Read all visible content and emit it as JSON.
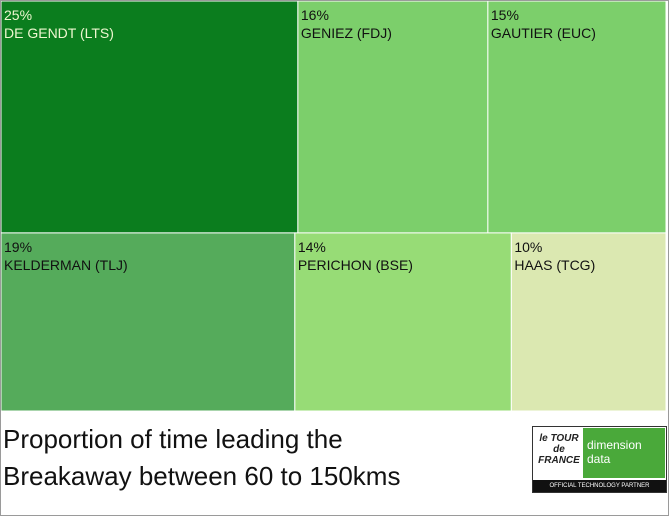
{
  "chart_data": {
    "type": "treemap",
    "title": "Proportion of time leading the Breakaway between 60 to 150kms",
    "categories": [
      "DE GENDT (LTS)",
      "GENIEZ (FDJ)",
      "GAUTIER (EUC)",
      "KELDERMAN (TLJ)",
      "PERICHON (BSE)",
      "HAAS (TCG)"
    ],
    "values": [
      25,
      16,
      15,
      19,
      14,
      10
    ],
    "value_labels": [
      "25%",
      "16%",
      "15%",
      "19%",
      "14%",
      "10%"
    ],
    "colors": [
      "#0b7d1e",
      "#7ccf6b",
      "#7ccf6b",
      "#55ab5b",
      "#97dc76",
      "#dbe8b1"
    ]
  },
  "logo": {
    "tour": "le TOUR de FRANCE",
    "brand": "dimension data",
    "tagline": "OFFICIAL TECHNOLOGY PARTNER"
  }
}
